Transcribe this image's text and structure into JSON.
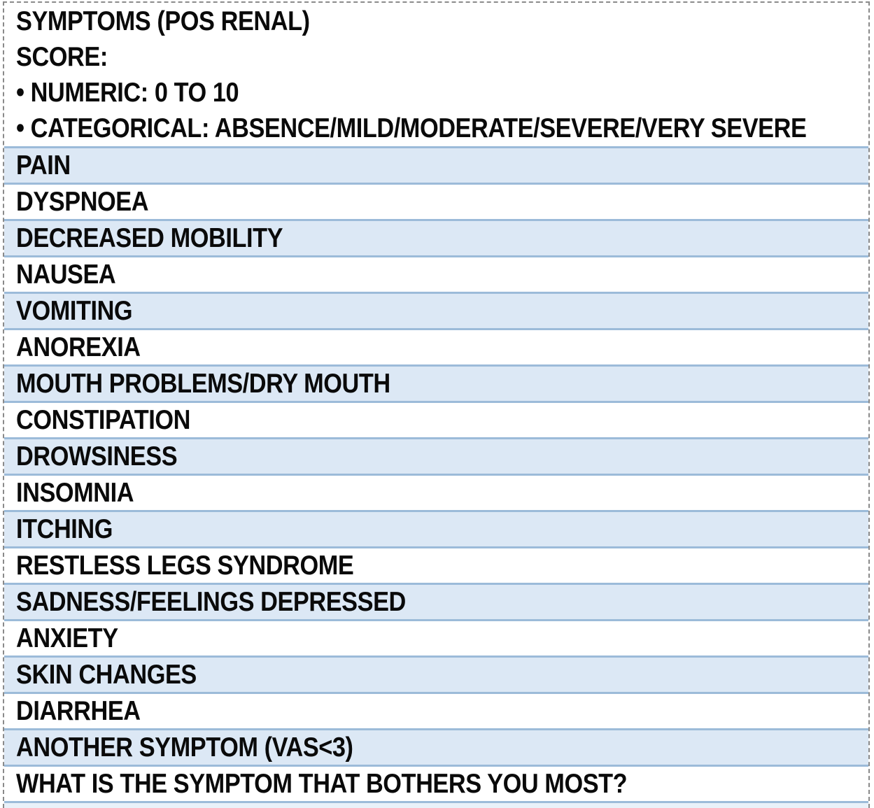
{
  "figure": {
    "header_lines": [
      "SYMPTOMS (POS RENAL)",
      "SCORE:",
      "• NUMERIC: 0 TO 10",
      "• CATEGORICAL: ABSENCE/MILD/MODERATE/SEVERE/VERY SEVERE"
    ],
    "rows": [
      {
        "label": "PAIN",
        "shaded": true
      },
      {
        "label": "DYSPNOEA",
        "shaded": false
      },
      {
        "label": "DECREASED MOBILITY",
        "shaded": true
      },
      {
        "label": "NAUSEA",
        "shaded": false
      },
      {
        "label": "VOMITING",
        "shaded": true
      },
      {
        "label": "ANOREXIA",
        "shaded": false
      },
      {
        "label": "MOUTH PROBLEMS/DRY MOUTH",
        "shaded": true
      },
      {
        "label": "CONSTIPATION",
        "shaded": false
      },
      {
        "label": "DROWSINESS",
        "shaded": true
      },
      {
        "label": "INSOMNIA",
        "shaded": false
      },
      {
        "label": "ITCHING",
        "shaded": true
      },
      {
        "label": "RESTLESS LEGS SYNDROME",
        "shaded": false
      },
      {
        "label": "SADNESS/FEELINGS DEPRESSED",
        "shaded": true
      },
      {
        "label": "ANXIETY",
        "shaded": false
      },
      {
        "label": "SKIN CHANGES",
        "shaded": true
      },
      {
        "label": "DIARRHEA",
        "shaded": false
      },
      {
        "label": "ANOTHER SYMPTOM (VAS<3)",
        "shaded": true
      },
      {
        "label": "WHAT IS THE SYMPTOM THAT BOTHERS YOU MOST?",
        "shaded": false
      }
    ],
    "colors": {
      "shaded_row_bg": "#dce8f5",
      "row_divider": "#9cbbd9",
      "frame_border": "#8a8a8a",
      "text": "#0a0a0a",
      "bottom_strip": "#e9f1f9"
    }
  }
}
